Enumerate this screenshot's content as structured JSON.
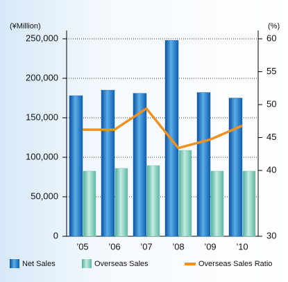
{
  "chart_data": {
    "type": "bar_line",
    "y_unit": "(¥Million)",
    "y2_unit": "(%)",
    "categories": [
      "’05",
      "’06",
      "’07",
      "’08",
      "’09",
      "’10"
    ],
    "series": [
      {
        "name": "Net Sales",
        "type": "bar",
        "color": "#1b6fc1",
        "values": [
          178000,
          185000,
          181000,
          248000,
          182000,
          175000
        ]
      },
      {
        "name": "Overseas Sales",
        "type": "bar",
        "color": "#7cc6b6",
        "values": [
          82500,
          86000,
          89500,
          108800,
          82500,
          82500
        ]
      },
      {
        "name": "Overseas Sales Ratio",
        "type": "line",
        "axis": "y2",
        "color": "#f0901e",
        "values": [
          46.2,
          46.2,
          49.4,
          43.4,
          44.7,
          46.8
        ]
      }
    ],
    "ylim": [
      0,
      250000
    ],
    "yticks": [
      0,
      {
        "value": 50000,
        "label": "50,000"
      },
      {
        "value": 100000,
        "label": "100,000"
      },
      {
        "value": 150000,
        "label": "150,000"
      },
      {
        "value": 200000,
        "label": "200,000"
      },
      {
        "value": 250000,
        "label": "250,000"
      }
    ],
    "y2lim": [
      30,
      60
    ],
    "y2ticks": [
      30,
      40,
      45,
      50,
      55,
      60
    ],
    "grid": true,
    "legend": "bottom"
  }
}
